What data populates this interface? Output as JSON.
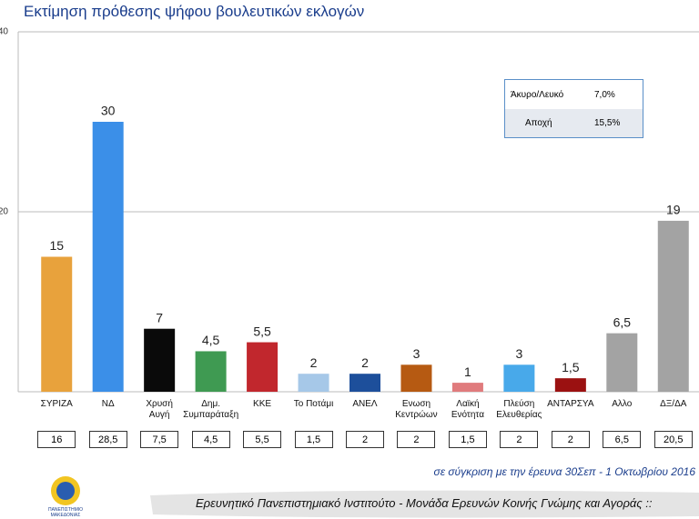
{
  "chart_data": {
    "type": "bar",
    "title": "Εκτίμηση πρόθεσης ψήφου βουλευτικών εκλογών",
    "categories": [
      "ΣΥΡΙΖΑ",
      "ΝΔ",
      "Χρυσή\nΑυγή",
      "Δημ.\nΣυμπαράταξη",
      "ΚΚΕ",
      "Το Ποτάμι",
      "ΑΝΕΛ",
      "Ενωση\nΚεντρώων",
      "Λαϊκή\nΕνότητα",
      "Πλεύση\nΕλευθερίας",
      "ΑΝΤΑΡΣΥΑ",
      "Αλλο",
      "ΔΞ/ΔΑ"
    ],
    "values": [
      15,
      30,
      7,
      4.5,
      5.5,
      2,
      2,
      3,
      1,
      3,
      1.5,
      6.5,
      19
    ],
    "value_labels": [
      "15",
      "30",
      "7",
      "4,5",
      "5,5",
      "2",
      "2",
      "3",
      "1",
      "3",
      "1,5",
      "6,5",
      "19"
    ],
    "colors": [
      "#e8a23c",
      "#3b8fe8",
      "#0a0a0a",
      "#3f9a52",
      "#c1272d",
      "#a6c8e8",
      "#1d4f9b",
      "#b65a12",
      "#e07b7d",
      "#48a9ea",
      "#9b1111",
      "#a3a3a3",
      "#a3a3a3"
    ],
    "ylim": [
      0,
      40
    ],
    "yticks": [
      20,
      40
    ],
    "grid": true,
    "comparison": {
      "note": "σε σύγκριση με την έρευνα 30Σεπ - 1 Οκτωβρίου 2016",
      "values": [
        16,
        28.5,
        7.5,
        4.5,
        5.5,
        1.5,
        2,
        2,
        1.5,
        2,
        2,
        6.5,
        20.5
      ],
      "value_labels": [
        "16",
        "28,5",
        "7,5",
        "4,5",
        "5,5",
        "1,5",
        "2",
        "2",
        "1,5",
        "2",
        "2",
        "6,5",
        "20,5"
      ]
    },
    "table": {
      "rows": [
        {
          "name": "Άκυρο/Λευκό",
          "value": 7.0,
          "label": "7,0%"
        },
        {
          "name": "Αποχή",
          "value": 15.5,
          "label": "15,5%"
        }
      ]
    }
  },
  "footer": {
    "logo": "ΠΑΝΕΠΙΣΤΗΜΙΟ\nΜΑΚΕΔΟΝΙΑΣ",
    "text": "Ερευνητικό Πανεπιστημιακό Ινστιτούτο - Μονάδα Ερευνών Κοινής Γνώμης και Αγοράς ::"
  }
}
